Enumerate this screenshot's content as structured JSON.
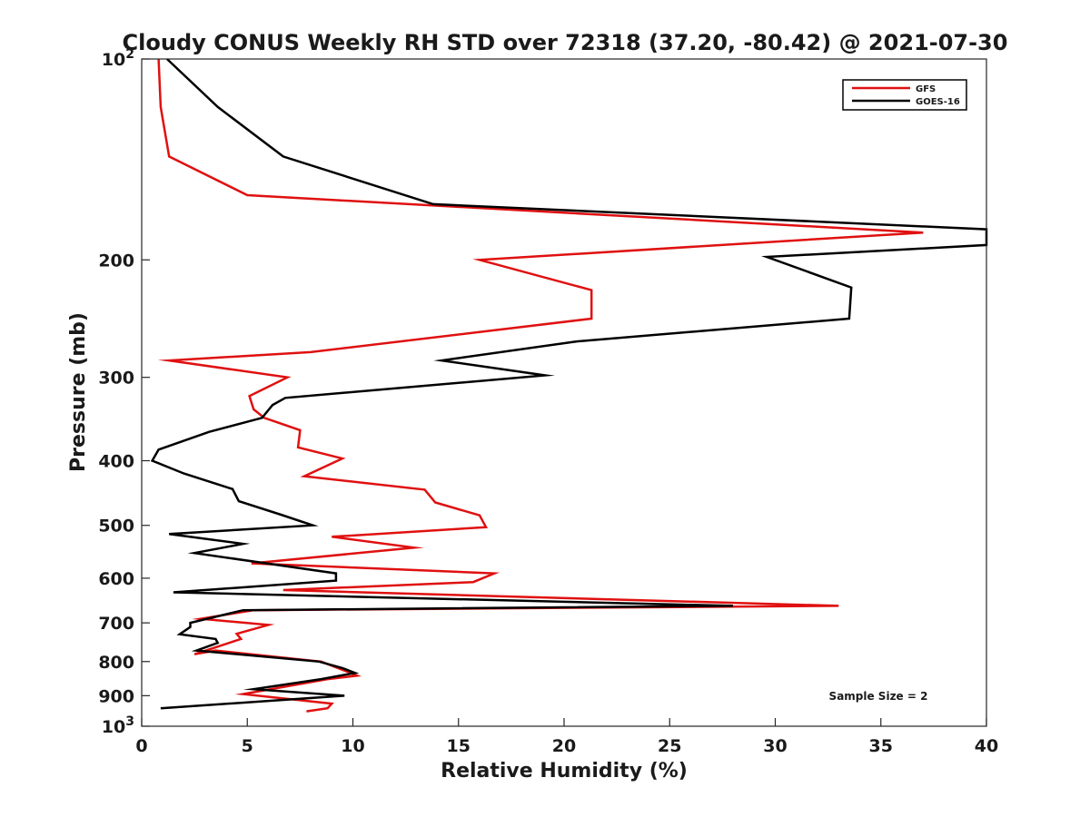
{
  "chart_data": {
    "type": "line",
    "title": "Cloudy CONUS Weekly RH STD over 72318 (37.20, -80.42) @ 2021-07-30",
    "xlabel": "Relative Humidity (%)",
    "ylabel": "Pressure (mb)",
    "xlim": [
      0,
      40
    ],
    "ylim": [
      100,
      1000
    ],
    "yscale": "log",
    "yreversed": true,
    "x_ticks": [
      {
        "value": 0,
        "label": "0"
      },
      {
        "value": 5,
        "label": "5"
      },
      {
        "value": 10,
        "label": "10"
      },
      {
        "value": 15,
        "label": "15"
      },
      {
        "value": 20,
        "label": "20"
      },
      {
        "value": 25,
        "label": "25"
      },
      {
        "value": 30,
        "label": "30"
      },
      {
        "value": 35,
        "label": "35"
      },
      {
        "value": 40,
        "label": "40"
      }
    ],
    "y_ticks": [
      {
        "value": 100,
        "base": "10",
        "exp": "2"
      },
      {
        "value": 200,
        "label": "200"
      },
      {
        "value": 300,
        "label": "300"
      },
      {
        "value": 400,
        "label": "400"
      },
      {
        "value": 500,
        "label": "500"
      },
      {
        "value": 600,
        "label": "600"
      },
      {
        "value": 700,
        "label": "700"
      },
      {
        "value": 800,
        "label": "800"
      },
      {
        "value": 900,
        "label": "900"
      },
      {
        "value": 1000,
        "base": "10",
        "exp": "3"
      }
    ],
    "legend_position": "top-right",
    "grid": false,
    "annotation": "Sample Size = 2",
    "series": [
      {
        "name": "GFS",
        "color": "#e01010",
        "points": [
          [
            0.8,
            100
          ],
          [
            0.9,
            118
          ],
          [
            1.3,
            140
          ],
          [
            5.0,
            160
          ],
          [
            37.0,
            182
          ],
          [
            16.0,
            200
          ],
          [
            21.3,
            222
          ],
          [
            21.3,
            245
          ],
          [
            8.0,
            275
          ],
          [
            1.3,
            283
          ],
          [
            6.9,
            300
          ],
          [
            5.1,
            320
          ],
          [
            5.3,
            335
          ],
          [
            5.8,
            345
          ],
          [
            7.5,
            360
          ],
          [
            7.4,
            382
          ],
          [
            9.5,
            397
          ],
          [
            7.7,
            422
          ],
          [
            13.4,
            442
          ],
          [
            13.9,
            462
          ],
          [
            16.0,
            483
          ],
          [
            16.3,
            503
          ],
          [
            9.0,
            520
          ],
          [
            12.9,
            540
          ],
          [
            5.2,
            570
          ],
          [
            16.7,
            590
          ],
          [
            15.7,
            608
          ],
          [
            6.7,
            625
          ],
          [
            33.0,
            660
          ],
          [
            5.3,
            670
          ],
          [
            2.8,
            690
          ],
          [
            6.0,
            705
          ],
          [
            4.5,
            727
          ],
          [
            4.7,
            740
          ],
          [
            2.5,
            780
          ],
          [
            3.5,
            770
          ],
          [
            8.5,
            800
          ],
          [
            9.8,
            830
          ],
          [
            10.2,
            840
          ],
          [
            8.8,
            850
          ],
          [
            4.8,
            895
          ],
          [
            9.0,
            925
          ],
          [
            8.8,
            940
          ],
          [
            7.8,
            950
          ]
        ]
      },
      {
        "name": "GOES-16",
        "color": "#000000",
        "points": [
          [
            1.2,
            100
          ],
          [
            3.6,
            118
          ],
          [
            6.7,
            140
          ],
          [
            13.8,
            165
          ],
          [
            40.0,
            180
          ],
          [
            40.0,
            190
          ],
          [
            29.6,
            198
          ],
          [
            33.6,
            220
          ],
          [
            33.5,
            245
          ],
          [
            20.6,
            265
          ],
          [
            14.2,
            283
          ],
          [
            19.1,
            298
          ],
          [
            6.8,
            322
          ],
          [
            6.2,
            330
          ],
          [
            5.7,
            345
          ],
          [
            3.2,
            362
          ],
          [
            0.8,
            385
          ],
          [
            0.5,
            400
          ],
          [
            2.0,
            418
          ],
          [
            4.3,
            441
          ],
          [
            4.6,
            460
          ],
          [
            6.6,
            482
          ],
          [
            8.1,
            500
          ],
          [
            1.3,
            515
          ],
          [
            4.8,
            533
          ],
          [
            2.5,
            550
          ],
          [
            9.2,
            590
          ],
          [
            9.2,
            605
          ],
          [
            1.5,
            630
          ],
          [
            28.0,
            660
          ],
          [
            4.8,
            670
          ],
          [
            2.3,
            700
          ],
          [
            2.3,
            710
          ],
          [
            1.8,
            728
          ],
          [
            3.5,
            740
          ],
          [
            3.6,
            750
          ],
          [
            2.6,
            770
          ],
          [
            8.4,
            800
          ],
          [
            9.5,
            818
          ],
          [
            10.1,
            832
          ],
          [
            8.5,
            850
          ],
          [
            5.3,
            880
          ],
          [
            9.6,
            900
          ],
          [
            0.9,
            940
          ]
        ]
      }
    ]
  }
}
